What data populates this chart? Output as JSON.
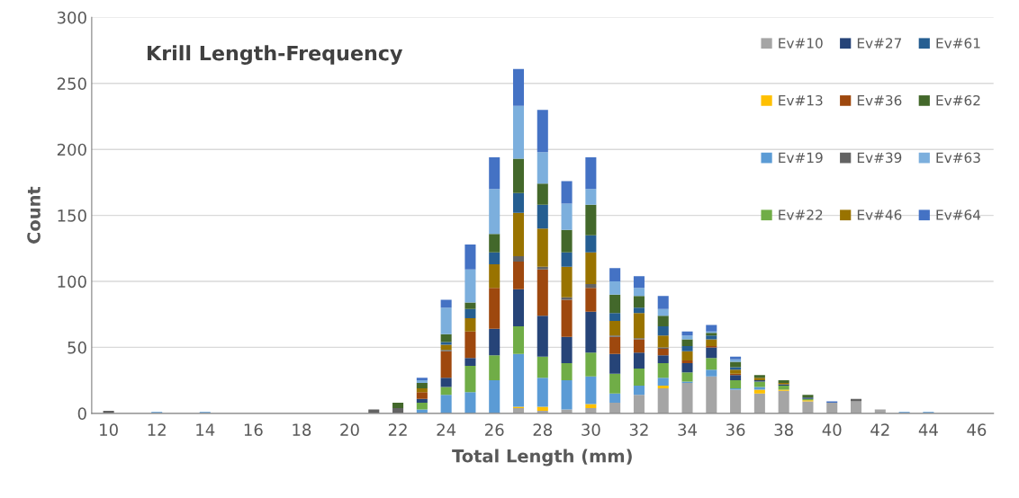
{
  "chart_data": {
    "type": "bar",
    "stacked": true,
    "title": "Krill Length-Frequency",
    "xlabel": "Total Length (mm)",
    "ylabel": "Count",
    "categories": [
      "10",
      null,
      "12",
      null,
      "14",
      null,
      "16",
      null,
      "18",
      null,
      "20",
      null,
      "22",
      null,
      "24",
      null,
      "26",
      null,
      "28",
      null,
      "30",
      null,
      "32",
      null,
      "34",
      null,
      "36",
      null,
      "38",
      null,
      "40",
      null,
      "42",
      null,
      "44",
      null,
      "46"
    ],
    "ylim": [
      0,
      300
    ],
    "yticks": [
      0,
      50,
      100,
      150,
      200,
      250,
      300
    ],
    "grid": "y",
    "legend": "top right",
    "series": [
      {
        "name": "Ev#10",
        "color": "#a5a5a5",
        "values": [
          0,
          0,
          0,
          0,
          0,
          0,
          0,
          0,
          0,
          0,
          0,
          0,
          0,
          0,
          0,
          0,
          0,
          4,
          2,
          3,
          4,
          8,
          14,
          19,
          23,
          28,
          18,
          15,
          17,
          9,
          8,
          9,
          3,
          0,
          0,
          0,
          0
        ]
      },
      {
        "name": "Ev#13",
        "color": "#ffc000",
        "values": [
          0,
          0,
          0,
          0,
          0,
          0,
          0,
          0,
          0,
          0,
          0,
          0,
          0,
          0,
          0,
          0,
          0,
          1,
          3,
          0,
          3,
          0,
          0,
          2,
          0,
          0,
          0,
          3,
          1,
          1,
          0,
          0,
          0,
          0,
          0,
          0,
          0
        ]
      },
      {
        "name": "Ev#19",
        "color": "#5b9bd5",
        "values": [
          0,
          0,
          1,
          0,
          1,
          0,
          0,
          0,
          0,
          0,
          0,
          0,
          0,
          3,
          14,
          16,
          25,
          40,
          22,
          22,
          21,
          7,
          7,
          6,
          1,
          5,
          1,
          2,
          0,
          0,
          0,
          0,
          0,
          1,
          1,
          0,
          0
        ]
      },
      {
        "name": "Ev#22",
        "color": "#70ad47",
        "values": [
          0,
          0,
          0,
          0,
          0,
          0,
          0,
          0,
          0,
          0,
          0,
          0,
          0,
          5,
          6,
          20,
          19,
          21,
          16,
          13,
          18,
          15,
          13,
          11,
          7,
          9,
          6,
          4,
          3,
          1,
          0,
          0,
          0,
          0,
          0,
          0,
          0
        ]
      },
      {
        "name": "Ev#27",
        "color": "#264478",
        "values": [
          0,
          0,
          0,
          0,
          0,
          0,
          0,
          0,
          0,
          0,
          0,
          0,
          0,
          3,
          7,
          6,
          20,
          28,
          31,
          20,
          31,
          15,
          12,
          6,
          7,
          8,
          4,
          1,
          1,
          1,
          0,
          0,
          0,
          0,
          0,
          0,
          0
        ]
      },
      {
        "name": "Ev#36",
        "color": "#9e480e",
        "values": [
          0,
          0,
          0,
          0,
          0,
          0,
          0,
          0,
          0,
          0,
          0,
          0,
          0,
          5,
          20,
          20,
          31,
          21,
          35,
          28,
          18,
          13,
          10,
          5,
          2,
          1,
          1,
          0,
          0,
          0,
          0,
          0,
          0,
          0,
          0,
          0,
          0
        ]
      },
      {
        "name": "Ev#39",
        "color": "#636363",
        "values": [
          2,
          0,
          0,
          0,
          0,
          0,
          0,
          0,
          0,
          0,
          0,
          3,
          4,
          0,
          1,
          0,
          0,
          4,
          2,
          2,
          3,
          1,
          1,
          1,
          0,
          0,
          0,
          0,
          0,
          0,
          0,
          2,
          0,
          0,
          0,
          0,
          0
        ]
      },
      {
        "name": "Ev#46",
        "color": "#997300",
        "values": [
          0,
          0,
          0,
          0,
          0,
          0,
          0,
          0,
          0,
          0,
          0,
          0,
          0,
          3,
          4,
          10,
          18,
          33,
          29,
          23,
          24,
          11,
          19,
          9,
          7,
          5,
          3,
          2,
          1,
          0,
          0,
          0,
          0,
          0,
          0,
          0,
          0
        ]
      },
      {
        "name": "Ev#61",
        "color": "#255e91",
        "values": [
          0,
          0,
          0,
          0,
          0,
          0,
          0,
          0,
          0,
          0,
          0,
          0,
          0,
          0,
          2,
          7,
          9,
          15,
          18,
          11,
          13,
          6,
          4,
          7,
          4,
          3,
          2,
          0,
          0,
          0,
          0,
          0,
          0,
          0,
          0,
          0,
          0
        ]
      },
      {
        "name": "Ev#62",
        "color": "#43682b",
        "values": [
          0,
          0,
          0,
          0,
          0,
          0,
          0,
          0,
          0,
          0,
          0,
          0,
          4,
          4,
          6,
          5,
          14,
          26,
          16,
          17,
          23,
          14,
          9,
          8,
          5,
          2,
          4,
          2,
          2,
          2,
          0,
          0,
          0,
          0,
          0,
          0,
          0
        ]
      },
      {
        "name": "Ev#63",
        "color": "#7cafdd",
        "values": [
          0,
          0,
          0,
          0,
          0,
          0,
          0,
          0,
          0,
          0,
          0,
          0,
          0,
          2,
          20,
          25,
          34,
          40,
          24,
          20,
          12,
          10,
          6,
          5,
          3,
          1,
          2,
          0,
          0,
          0,
          0,
          0,
          0,
          0,
          0,
          0,
          0
        ]
      },
      {
        "name": "Ev#64",
        "color": "#4472c4",
        "values": [
          0,
          0,
          0,
          0,
          0,
          0,
          0,
          0,
          0,
          0,
          0,
          0,
          0,
          2,
          6,
          19,
          24,
          28,
          32,
          17,
          24,
          10,
          9,
          10,
          3,
          5,
          2,
          0,
          0,
          0,
          1,
          0,
          0,
          0,
          0,
          0,
          0
        ]
      }
    ]
  }
}
